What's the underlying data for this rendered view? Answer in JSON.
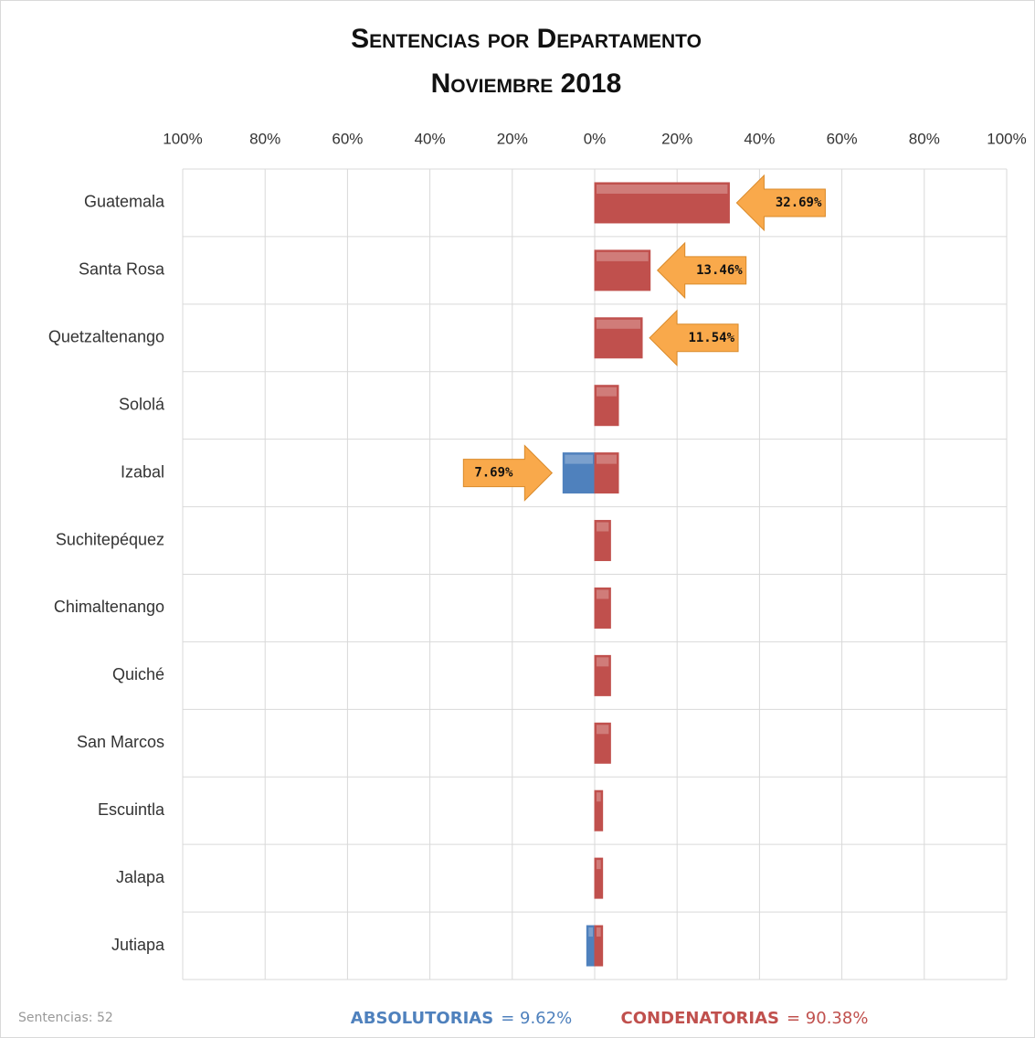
{
  "chart_data": {
    "type": "diverging_bar",
    "title": "Sentencias por Departamento",
    "subtitle": "Noviembre 2018",
    "categories": [
      "Guatemala",
      "Santa Rosa",
      "Quetzaltenango",
      "Sololá",
      "Izabal",
      "Suchitepéquez",
      "Chimaltenango",
      "Quiché",
      "San Marcos",
      "Escuintla",
      "Jalapa",
      "Jutiapa"
    ],
    "series": [
      {
        "name": "ABSOLUTORIAS",
        "total_label": "= 9.62%",
        "color": "#4f81bd",
        "values": [
          0,
          0,
          0,
          0,
          -7.69,
          0,
          0,
          0,
          0,
          0,
          0,
          -1.92
        ],
        "value_labels": [
          null,
          null,
          null,
          null,
          "7.69%",
          null,
          null,
          null,
          null,
          null,
          null,
          null
        ]
      },
      {
        "name": "CONDENATORIAS",
        "total_label": "= 90.38%",
        "color": "#c0504d",
        "values": [
          32.69,
          13.46,
          11.54,
          5.77,
          5.77,
          3.85,
          3.85,
          3.85,
          3.85,
          1.92,
          1.92,
          1.92
        ],
        "value_labels": [
          "32.69%",
          "13.46%",
          "11.54%",
          null,
          null,
          null,
          null,
          null,
          null,
          null,
          null,
          null
        ]
      }
    ],
    "xlim": [
      -100,
      100
    ],
    "xticks": [
      {
        "value": -100,
        "label": "100%"
      },
      {
        "value": -80,
        "label": "80%"
      },
      {
        "value": -60,
        "label": "60%"
      },
      {
        "value": -40,
        "label": "40%"
      },
      {
        "value": -20,
        "label": "20%"
      },
      {
        "value": 0,
        "label": "0%"
      },
      {
        "value": 20,
        "label": "20%"
      },
      {
        "value": 40,
        "label": "40%"
      },
      {
        "value": 60,
        "label": "60%"
      },
      {
        "value": 80,
        "label": "80%"
      },
      {
        "value": 100,
        "label": "100%"
      }
    ],
    "grid": true,
    "annotation": "Sentencias: 52"
  }
}
